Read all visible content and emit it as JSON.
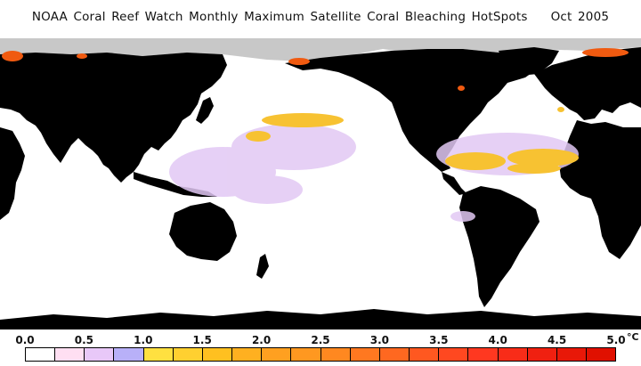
{
  "header": {
    "title": "NOAA Coral Reef Watch Monthly Maximum Satellite Coral Bleaching HotSpots",
    "date": "Oct 2005"
  },
  "colors": {
    "land": "#000000",
    "ocean": "#ffffff",
    "sea_ice": "#c8c8c8",
    "hotspot_low": "#e2c8f4",
    "hotspot_mid": "#f7c232",
    "hotspot_high": "#f05a10"
  },
  "legend": {
    "tick_labels": [
      "0.0",
      "0.5",
      "1.0",
      "1.5",
      "2.0",
      "2.5",
      "3.0",
      "3.5",
      "4.0",
      "4.5",
      "5.0"
    ],
    "unit": "°C",
    "swatch_colors": [
      "#ffffff",
      "#ffdff2",
      "#e8c8f8",
      "#b8b0f8",
      "#ffe040",
      "#ffd030",
      "#ffc020",
      "#ffb020",
      "#ffa020",
      "#ff9820",
      "#ff8820",
      "#ff7820",
      "#ff6820",
      "#ff5820",
      "#ff4820",
      "#ff3820",
      "#f82c18",
      "#f02010",
      "#e81808",
      "#e01000"
    ]
  }
}
